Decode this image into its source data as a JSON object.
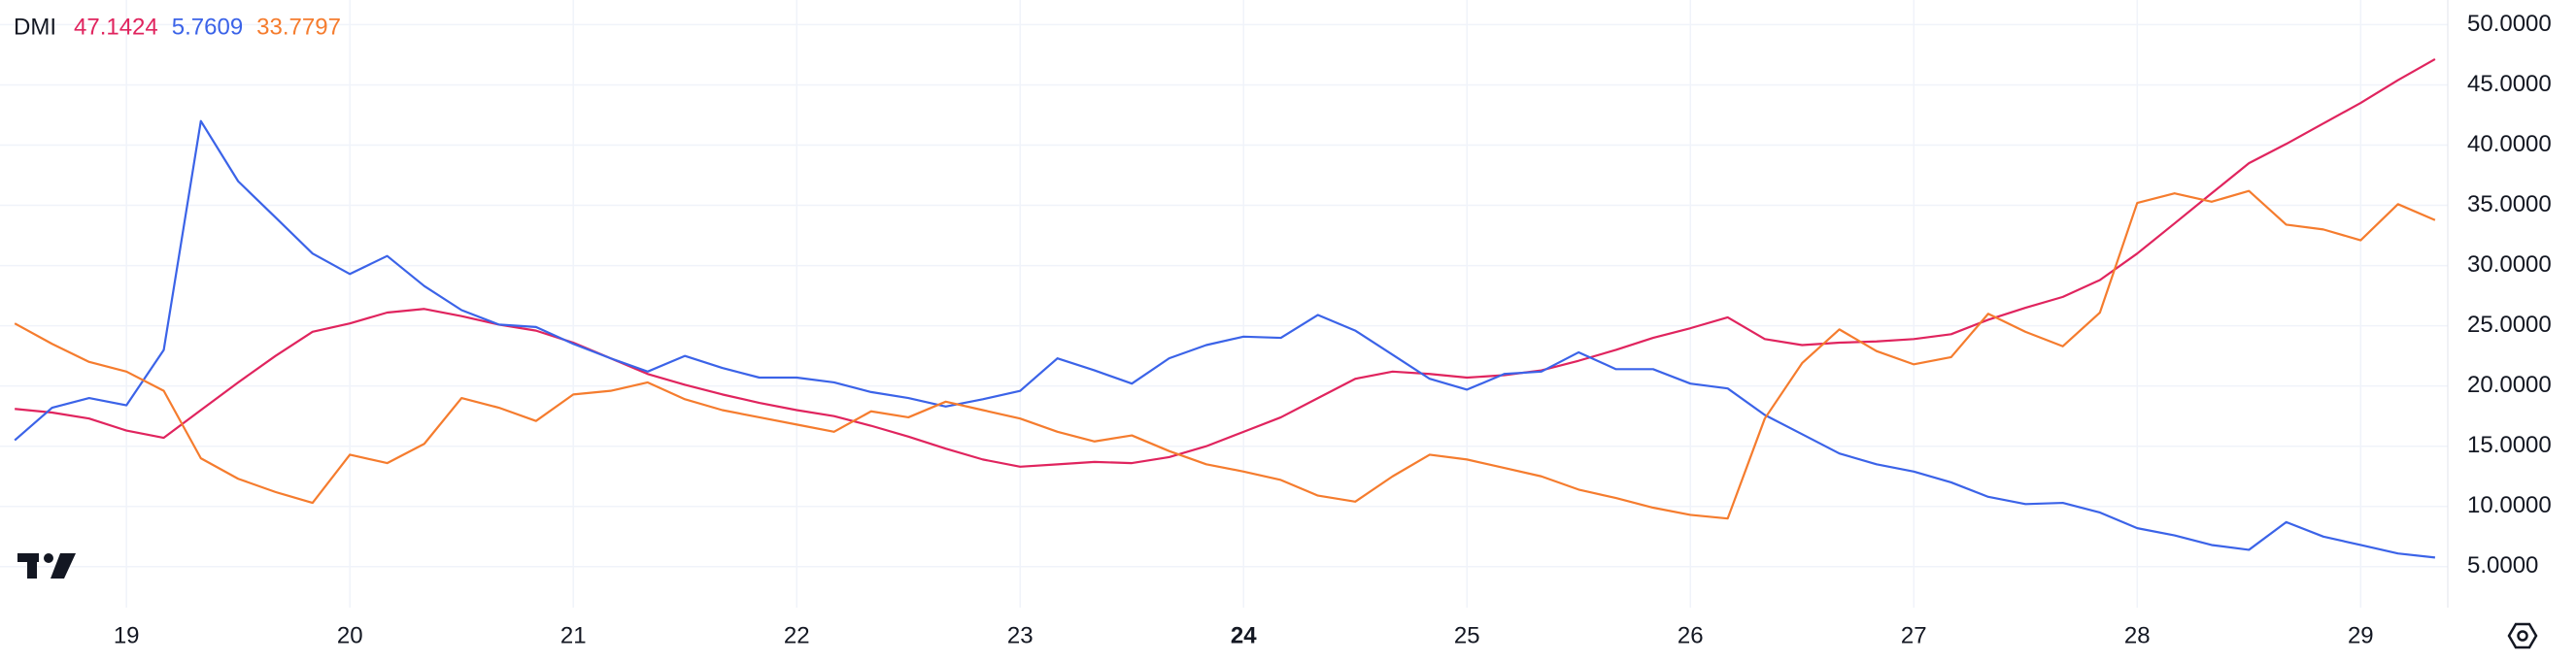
{
  "chart_data": {
    "type": "line",
    "title": "DMI",
    "x": [
      18.5,
      18.667,
      18.833,
      19,
      19.167,
      19.333,
      19.5,
      19.667,
      19.833,
      20,
      20.167,
      20.333,
      20.5,
      20.667,
      20.833,
      21,
      21.167,
      21.333,
      21.5,
      21.667,
      21.833,
      22,
      22.167,
      22.333,
      22.5,
      22.667,
      22.833,
      23,
      23.167,
      23.333,
      23.5,
      23.667,
      23.833,
      24,
      24.167,
      24.333,
      24.5,
      24.667,
      24.833,
      25,
      25.167,
      25.333,
      25.5,
      25.667,
      25.833,
      26,
      26.167,
      26.333,
      26.5,
      26.667,
      26.833,
      27,
      27.167,
      27.333,
      27.5,
      27.667,
      27.833,
      28,
      28.167,
      28.333,
      28.5,
      28.667,
      28.833,
      29,
      29.167,
      29.333
    ],
    "series": [
      {
        "color": "#e0245e",
        "values": [
          18.1,
          17.8,
          17.3,
          16.3,
          15.7,
          18.0,
          20.3,
          22.5,
          24.5,
          25.2,
          26.1,
          26.4,
          25.8,
          25.1,
          24.6,
          23.6,
          22.3,
          21.0,
          20.1,
          19.3,
          18.6,
          18.0,
          17.5,
          16.7,
          15.8,
          14.8,
          13.9,
          13.3,
          13.5,
          13.7,
          13.6,
          14.1,
          15.0,
          16.2,
          17.4,
          19.0,
          20.6,
          21.2,
          21.0,
          20.7,
          20.9,
          21.3,
          22.1,
          23.0,
          24.0,
          24.8,
          25.7,
          23.9,
          23.4,
          23.6,
          23.7,
          23.9,
          24.3,
          25.5,
          26.5,
          27.4,
          28.8,
          31.0,
          33.5,
          36.0,
          38.5,
          40.1,
          41.8,
          43.5,
          45.4,
          47.1424
        ]
      },
      {
        "color": "#3b63e8",
        "values": [
          15.5,
          18.2,
          19.0,
          18.4,
          23.0,
          42.0,
          37.0,
          34.0,
          31.0,
          29.3,
          30.8,
          28.3,
          26.3,
          25.1,
          24.9,
          23.5,
          22.3,
          21.2,
          22.5,
          21.5,
          20.7,
          20.7,
          20.3,
          19.5,
          19.0,
          18.3,
          18.9,
          19.6,
          22.3,
          21.3,
          20.2,
          22.3,
          23.4,
          24.1,
          24.0,
          25.9,
          24.6,
          22.6,
          20.6,
          19.7,
          21.0,
          21.2,
          22.8,
          21.4,
          21.4,
          20.2,
          19.8,
          17.6,
          16.0,
          14.4,
          13.5,
          12.9,
          12.0,
          10.8,
          10.2,
          10.3,
          9.5,
          8.2,
          7.6,
          6.8,
          6.4,
          8.7,
          7.5,
          6.8,
          6.1,
          5.7609
        ]
      },
      {
        "color": "#f57c2e",
        "values": [
          25.2,
          23.5,
          22.0,
          21.2,
          19.6,
          14.0,
          12.3,
          11.2,
          10.3,
          14.3,
          13.6,
          15.2,
          19.0,
          18.2,
          17.1,
          19.3,
          19.6,
          20.3,
          18.9,
          18.0,
          17.4,
          16.8,
          16.2,
          17.9,
          17.4,
          18.7,
          18.0,
          17.3,
          16.2,
          15.4,
          15.9,
          14.6,
          13.5,
          12.9,
          12.2,
          10.9,
          10.4,
          12.5,
          14.3,
          13.9,
          13.2,
          12.5,
          11.4,
          10.7,
          9.9,
          9.3,
          9.0,
          17.3,
          21.9,
          24.7,
          22.9,
          21.8,
          22.4,
          26.0,
          24.5,
          23.3,
          26.1,
          35.2,
          36.0,
          35.3,
          36.2,
          33.4,
          33.0,
          32.1,
          35.1,
          33.7797
        ]
      }
    ],
    "xlim": [
      18.434,
      29.39
    ],
    "xticks": [
      19,
      20,
      21,
      22,
      23,
      24,
      25,
      26,
      27,
      28,
      29
    ],
    "highlight_xtick": 24,
    "ylim": [
      1.6,
      52.05
    ],
    "yticks": [
      {
        "value": 5,
        "label": "5.0000"
      },
      {
        "value": 10,
        "label": "10.0000"
      },
      {
        "value": 15,
        "label": "15.0000"
      },
      {
        "value": 20,
        "label": "20.0000"
      },
      {
        "value": 25,
        "label": "25.0000"
      },
      {
        "value": 30,
        "label": "30.0000"
      },
      {
        "value": 35,
        "label": "35.0000"
      },
      {
        "value": 40,
        "label": "40.0000"
      },
      {
        "value": 45,
        "label": "45.0000"
      },
      {
        "value": 50,
        "label": "50.0000"
      }
    ],
    "grid": true
  }
}
